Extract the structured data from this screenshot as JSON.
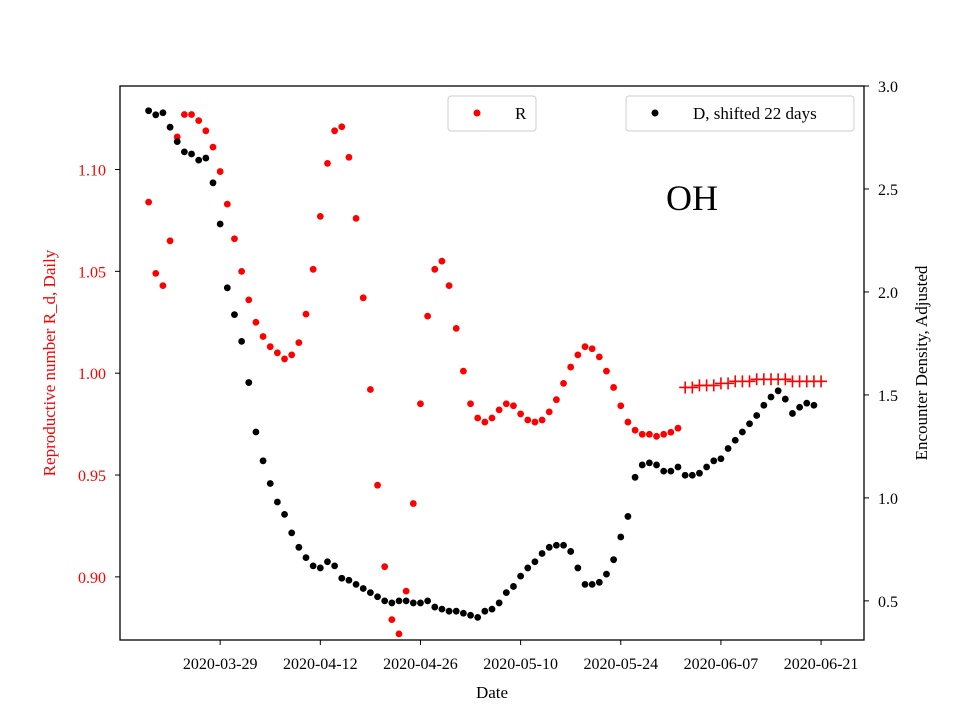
{
  "chart_data": {
    "type": "scatter",
    "annotation": "OH",
    "xlabel": "Date",
    "ylabel_left": "Reproductive number R_d, Daily",
    "ylabel_right": "Encounter Density, Adjusted",
    "x_ticks": [
      "2020-03-29",
      "2020-04-12",
      "2020-04-26",
      "2020-05-10",
      "2020-05-24",
      "2020-06-07",
      "2020-06-21"
    ],
    "y_left_ticks": [
      "0.90",
      "0.95",
      "1.00",
      "1.05",
      "1.10"
    ],
    "y_right_ticks": [
      "0.5",
      "1.0",
      "1.5",
      "2.0",
      "2.5",
      "3.0"
    ],
    "xlim": [
      "2020-03-15",
      "2020-06-27"
    ],
    "ylim_left": [
      0.869,
      1.141
    ],
    "ylim_right": [
      0.31,
      3.0
    ],
    "legend": [
      {
        "label": "R",
        "placement": "top-center"
      },
      {
        "label": "D, shifted 22 days",
        "placement": "top-right"
      }
    ],
    "colors": {
      "R": "#ff0000",
      "D": "#000000",
      "axis_left_label": "#ff0000"
    },
    "grid": false,
    "series": [
      {
        "name": "R",
        "axis": "left",
        "marker": "dot",
        "color": "#ff0000",
        "points": [
          [
            "2020-03-19",
            1.084
          ],
          [
            "2020-03-20",
            1.049
          ],
          [
            "2020-03-21",
            1.043
          ],
          [
            "2020-03-22",
            1.065
          ],
          [
            "2020-03-23",
            1.116
          ],
          [
            "2020-03-24",
            1.127
          ],
          [
            "2020-03-25",
            1.127
          ],
          [
            "2020-03-26",
            1.124
          ],
          [
            "2020-03-27",
            1.119
          ],
          [
            "2020-03-28",
            1.111
          ],
          [
            "2020-03-29",
            1.099
          ],
          [
            "2020-03-30",
            1.083
          ],
          [
            "2020-03-31",
            1.066
          ],
          [
            "2020-04-01",
            1.05
          ],
          [
            "2020-04-02",
            1.036
          ],
          [
            "2020-04-03",
            1.025
          ],
          [
            "2020-04-04",
            1.018
          ],
          [
            "2020-04-05",
            1.013
          ],
          [
            "2020-04-06",
            1.01
          ],
          [
            "2020-04-07",
            1.007
          ],
          [
            "2020-04-08",
            1.009
          ],
          [
            "2020-04-09",
            1.015
          ],
          [
            "2020-04-10",
            1.029
          ],
          [
            "2020-04-11",
            1.051
          ],
          [
            "2020-04-12",
            1.077
          ],
          [
            "2020-04-13",
            1.103
          ],
          [
            "2020-04-14",
            1.119
          ],
          [
            "2020-04-15",
            1.121
          ],
          [
            "2020-04-16",
            1.106
          ],
          [
            "2020-04-17",
            1.076
          ],
          [
            "2020-04-18",
            1.037
          ],
          [
            "2020-04-19",
            0.992
          ],
          [
            "2020-04-20",
            0.945
          ],
          [
            "2020-04-21",
            0.905
          ],
          [
            "2020-04-22",
            0.879
          ],
          [
            "2020-04-23",
            0.872
          ],
          [
            "2020-04-24",
            0.893
          ],
          [
            "2020-04-25",
            0.936
          ],
          [
            "2020-04-26",
            0.985
          ],
          [
            "2020-04-27",
            1.028
          ],
          [
            "2020-04-28",
            1.051
          ],
          [
            "2020-04-29",
            1.055
          ],
          [
            "2020-04-30",
            1.043
          ],
          [
            "2020-05-01",
            1.022
          ],
          [
            "2020-05-02",
            1.001
          ],
          [
            "2020-05-03",
            0.985
          ],
          [
            "2020-05-04",
            0.978
          ],
          [
            "2020-05-05",
            0.976
          ],
          [
            "2020-05-06",
            0.978
          ],
          [
            "2020-05-07",
            0.982
          ],
          [
            "2020-05-08",
            0.985
          ],
          [
            "2020-05-09",
            0.984
          ],
          [
            "2020-05-10",
            0.98
          ],
          [
            "2020-05-11",
            0.977
          ],
          [
            "2020-05-12",
            0.976
          ],
          [
            "2020-05-13",
            0.977
          ],
          [
            "2020-05-14",
            0.981
          ],
          [
            "2020-05-15",
            0.987
          ],
          [
            "2020-05-16",
            0.995
          ],
          [
            "2020-05-17",
            1.003
          ],
          [
            "2020-05-18",
            1.009
          ],
          [
            "2020-05-19",
            1.013
          ],
          [
            "2020-05-20",
            1.012
          ],
          [
            "2020-05-21",
            1.008
          ],
          [
            "2020-05-22",
            1.001
          ],
          [
            "2020-05-23",
            0.993
          ],
          [
            "2020-05-24",
            0.984
          ],
          [
            "2020-05-25",
            0.976
          ],
          [
            "2020-05-26",
            0.972
          ],
          [
            "2020-05-27",
            0.97
          ],
          [
            "2020-05-28",
            0.97
          ],
          [
            "2020-05-29",
            0.969
          ],
          [
            "2020-05-30",
            0.97
          ],
          [
            "2020-05-31",
            0.971
          ],
          [
            "2020-06-01",
            0.973
          ]
        ]
      },
      {
        "name": "R",
        "axis": "left",
        "marker": "plus",
        "color": "#ff0000",
        "points": [
          [
            "2020-06-02",
            0.993
          ],
          [
            "2020-06-03",
            0.993
          ],
          [
            "2020-06-04",
            0.994
          ],
          [
            "2020-06-05",
            0.994
          ],
          [
            "2020-06-06",
            0.994
          ],
          [
            "2020-06-07",
            0.995
          ],
          [
            "2020-06-08",
            0.995
          ],
          [
            "2020-06-09",
            0.996
          ],
          [
            "2020-06-10",
            0.996
          ],
          [
            "2020-06-11",
            0.996
          ],
          [
            "2020-06-12",
            0.997
          ],
          [
            "2020-06-13",
            0.997
          ],
          [
            "2020-06-14",
            0.997
          ],
          [
            "2020-06-15",
            0.997
          ],
          [
            "2020-06-16",
            0.997
          ],
          [
            "2020-06-17",
            0.996
          ],
          [
            "2020-06-18",
            0.996
          ],
          [
            "2020-06-19",
            0.996
          ],
          [
            "2020-06-20",
            0.996
          ],
          [
            "2020-06-21",
            0.996
          ]
        ]
      },
      {
        "name": "D, shifted 22 days",
        "axis": "right",
        "marker": "dot",
        "color": "#000000",
        "points": [
          [
            "2020-03-19",
            2.88
          ],
          [
            "2020-03-20",
            2.86
          ],
          [
            "2020-03-21",
            2.87
          ],
          [
            "2020-03-22",
            2.8
          ],
          [
            "2020-03-23",
            2.73
          ],
          [
            "2020-03-24",
            2.68
          ],
          [
            "2020-03-25",
            2.67
          ],
          [
            "2020-03-26",
            2.64
          ],
          [
            "2020-03-27",
            2.65
          ],
          [
            "2020-03-28",
            2.53
          ],
          [
            "2020-03-29",
            2.33
          ],
          [
            "2020-03-30",
            2.02
          ],
          [
            "2020-03-31",
            1.89
          ],
          [
            "2020-04-01",
            1.76
          ],
          [
            "2020-04-02",
            1.56
          ],
          [
            "2020-04-03",
            1.32
          ],
          [
            "2020-04-04",
            1.18
          ],
          [
            "2020-04-05",
            1.07
          ],
          [
            "2020-04-06",
            0.98
          ],
          [
            "2020-04-07",
            0.92
          ],
          [
            "2020-04-08",
            0.83
          ],
          [
            "2020-04-09",
            0.76
          ],
          [
            "2020-04-10",
            0.71
          ],
          [
            "2020-04-11",
            0.67
          ],
          [
            "2020-04-12",
            0.66
          ],
          [
            "2020-04-13",
            0.69
          ],
          [
            "2020-04-14",
            0.67
          ],
          [
            "2020-04-15",
            0.61
          ],
          [
            "2020-04-16",
            0.6
          ],
          [
            "2020-04-17",
            0.58
          ],
          [
            "2020-04-18",
            0.56
          ],
          [
            "2020-04-19",
            0.54
          ],
          [
            "2020-04-20",
            0.52
          ],
          [
            "2020-04-21",
            0.5
          ],
          [
            "2020-04-22",
            0.49
          ],
          [
            "2020-04-23",
            0.5
          ],
          [
            "2020-04-24",
            0.5
          ],
          [
            "2020-04-25",
            0.49
          ],
          [
            "2020-04-26",
            0.49
          ],
          [
            "2020-04-27",
            0.5
          ],
          [
            "2020-04-28",
            0.47
          ],
          [
            "2020-04-29",
            0.46
          ],
          [
            "2020-04-30",
            0.45
          ],
          [
            "2020-05-01",
            0.45
          ],
          [
            "2020-05-02",
            0.44
          ],
          [
            "2020-05-03",
            0.43
          ],
          [
            "2020-05-04",
            0.42
          ],
          [
            "2020-05-05",
            0.45
          ],
          [
            "2020-05-06",
            0.46
          ],
          [
            "2020-05-07",
            0.49
          ],
          [
            "2020-05-08",
            0.54
          ],
          [
            "2020-05-09",
            0.57
          ],
          [
            "2020-05-10",
            0.62
          ],
          [
            "2020-05-11",
            0.66
          ],
          [
            "2020-05-12",
            0.69
          ],
          [
            "2020-05-13",
            0.73
          ],
          [
            "2020-05-14",
            0.76
          ],
          [
            "2020-05-15",
            0.77
          ],
          [
            "2020-05-16",
            0.77
          ],
          [
            "2020-05-17",
            0.74
          ],
          [
            "2020-05-18",
            0.66
          ],
          [
            "2020-05-19",
            0.58
          ],
          [
            "2020-05-20",
            0.58
          ],
          [
            "2020-05-21",
            0.59
          ],
          [
            "2020-05-22",
            0.63
          ],
          [
            "2020-05-23",
            0.7
          ],
          [
            "2020-05-24",
            0.81
          ],
          [
            "2020-05-25",
            0.91
          ],
          [
            "2020-05-26",
            1.1
          ],
          [
            "2020-05-27",
            1.16
          ],
          [
            "2020-05-28",
            1.17
          ],
          [
            "2020-05-29",
            1.16
          ],
          [
            "2020-05-30",
            1.13
          ],
          [
            "2020-05-31",
            1.13
          ],
          [
            "2020-06-01",
            1.15
          ],
          [
            "2020-06-02",
            1.11
          ],
          [
            "2020-06-03",
            1.11
          ],
          [
            "2020-06-04",
            1.12
          ],
          [
            "2020-06-05",
            1.15
          ],
          [
            "2020-06-06",
            1.18
          ],
          [
            "2020-06-07",
            1.19
          ],
          [
            "2020-06-08",
            1.24
          ],
          [
            "2020-06-09",
            1.28
          ],
          [
            "2020-06-10",
            1.32
          ],
          [
            "2020-06-11",
            1.36
          ],
          [
            "2020-06-12",
            1.4
          ],
          [
            "2020-06-13",
            1.45
          ],
          [
            "2020-06-14",
            1.49
          ],
          [
            "2020-06-15",
            1.52
          ],
          [
            "2020-06-16",
            1.48
          ],
          [
            "2020-06-17",
            1.41
          ],
          [
            "2020-06-18",
            1.44
          ],
          [
            "2020-06-19",
            1.46
          ],
          [
            "2020-06-20",
            1.45
          ]
        ]
      }
    ]
  }
}
